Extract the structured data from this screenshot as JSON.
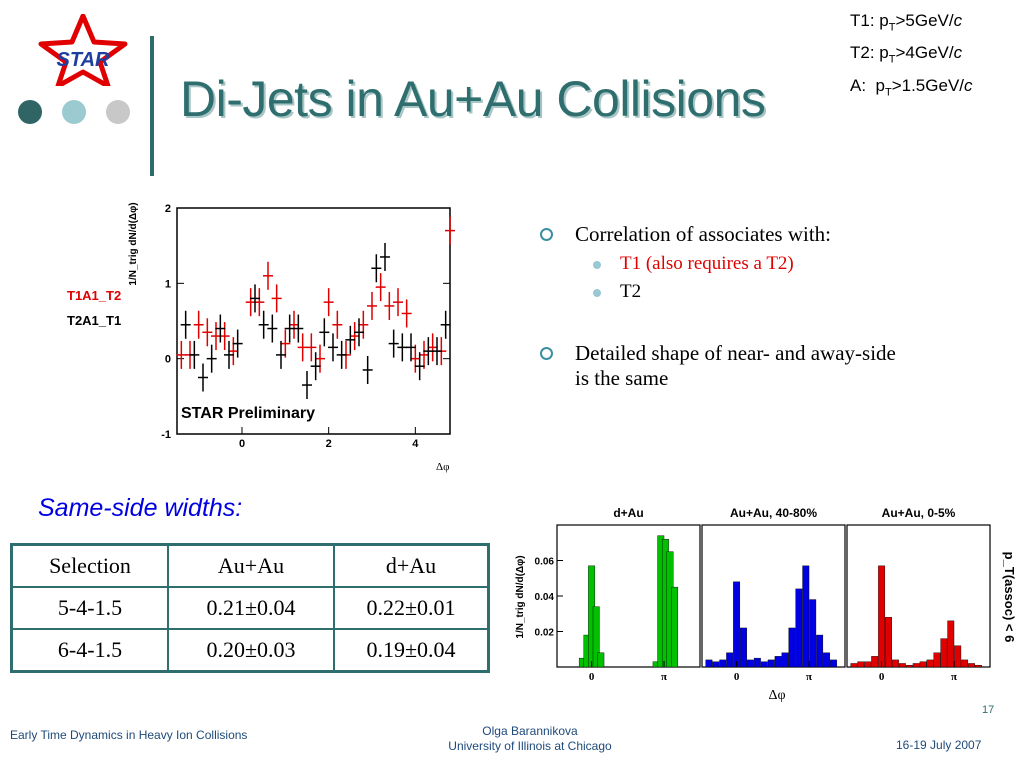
{
  "logo": {
    "text": "STAR"
  },
  "title": "Di-Jets in Au+Au Collisions",
  "cuts": [
    {
      "name": "T1",
      "prefix": "T1: p",
      "sub": "T",
      "value": ">5GeV/",
      "unit": "c"
    },
    {
      "name": "T2",
      "prefix": "T2: p",
      "sub": "T",
      "value": ">4GeV/",
      "unit": "c"
    },
    {
      "name": "A",
      "prefix": "A:  p",
      "sub": "T",
      "value": ">1.5GeV/",
      "unit": "c"
    }
  ],
  "legend": {
    "t1a1": "T1A1_T2",
    "t2a1": "T2A1_T1"
  },
  "bullets": {
    "main1": "Correlation of associates with:",
    "sub1": "T1 (also requires a T2)",
    "sub2": "T2",
    "main2": "Detailed shape of near- and away-side is the same"
  },
  "same_side": "Same-side widths:",
  "table": {
    "headers": [
      "Selection",
      "Au+Au",
      "d+Au"
    ],
    "rows": [
      [
        "5-4-1.5",
        "0.21±0.04",
        "0.22±0.01"
      ],
      [
        "6-4-1.5",
        "0.20±0.03",
        "0.19±0.04"
      ]
    ]
  },
  "footer": {
    "left": "Early Time Dynamics in Heavy Ion Collisions",
    "author": "Olga Barannikova",
    "affiliation": "University of Illinois at Chicago",
    "date": "16-19 July 2007",
    "page": "17"
  },
  "colors": {
    "accent": "#2f6e6e",
    "red": "#e00000",
    "green": "#00c000",
    "blue": "#0000e0"
  },
  "chart_data": [
    {
      "type": "scatter",
      "title": "",
      "annotation": "STAR Preliminary",
      "xlabel": "Δφ",
      "ylabel": "1/N_trig dN/d(Δφ)",
      "xlim": [
        -1.5,
        4.8
      ],
      "ylim": [
        -1,
        2
      ],
      "xticks": [
        0,
        2,
        4
      ],
      "yticks": [
        -1,
        0,
        1,
        2
      ],
      "series": [
        {
          "name": "T1A1_T2",
          "color": "#e00000",
          "x": [
            -1.4,
            -1.2,
            -1.0,
            -0.8,
            -0.6,
            -0.4,
            -0.2,
            0.2,
            0.4,
            0.6,
            0.8,
            1.0,
            1.2,
            1.4,
            1.6,
            1.8,
            2.0,
            2.2,
            2.4,
            2.6,
            2.8,
            3.0,
            3.2,
            3.4,
            3.6,
            3.8,
            4.0,
            4.2,
            4.4,
            4.6,
            4.8
          ],
          "y": [
            0.05,
            0.05,
            0.45,
            0.35,
            0.3,
            0.3,
            0.1,
            0.75,
            0.75,
            1.1,
            0.8,
            0.2,
            0.45,
            0.15,
            0.15,
            0.0,
            0.75,
            0.45,
            0.05,
            0.3,
            0.45,
            0.7,
            0.95,
            0.7,
            0.75,
            0.6,
            0.0,
            0.05,
            0.15,
            0.1,
            1.7
          ]
        },
        {
          "name": "T2A1_T1",
          "color": "#000000",
          "x": [
            -1.3,
            -1.1,
            -0.9,
            -0.7,
            -0.5,
            -0.3,
            -0.1,
            0.3,
            0.5,
            0.7,
            0.9,
            1.1,
            1.3,
            1.5,
            1.7,
            1.9,
            2.1,
            2.3,
            2.5,
            2.7,
            2.9,
            3.1,
            3.3,
            3.5,
            3.7,
            3.9,
            4.1,
            4.3,
            4.5,
            4.7
          ],
          "y": [
            0.45,
            0.05,
            -0.25,
            0.0,
            0.4,
            0.05,
            0.2,
            0.8,
            0.45,
            0.4,
            0.05,
            0.4,
            0.4,
            -0.35,
            -0.1,
            0.35,
            0.15,
            0.05,
            0.25,
            0.35,
            -0.15,
            1.2,
            1.35,
            0.2,
            0.15,
            0.15,
            -0.1,
            0.1,
            0.1,
            0.45
          ]
        }
      ]
    },
    {
      "type": "bar",
      "xlabel": "Δφ",
      "ylabel": "1/N_trig dN/d(Δφ)",
      "right_label": "p_T(assoc) < 6",
      "ylim": [
        0,
        0.08
      ],
      "yticks": [
        0.02,
        0.04,
        0.06
      ],
      "xticks": [
        "0",
        "π"
      ],
      "panels": [
        {
          "name": "d+Au",
          "color": "#00c000",
          "x": [
            -0.4,
            -0.2,
            0,
            0.2,
            0.4,
            2.8,
            3.0,
            3.2,
            3.4,
            3.6
          ],
          "values": [
            0.005,
            0.018,
            0.057,
            0.034,
            0.008,
            0.003,
            0.074,
            0.072,
            0.065,
            0.045
          ]
        },
        {
          "name": "Au+Au, 40-80%",
          "color": "#0000e0",
          "x": [
            -1.2,
            -0.9,
            -0.6,
            -0.3,
            0,
            0.3,
            0.6,
            0.9,
            1.2,
            1.5,
            1.8,
            2.1,
            2.4,
            2.7,
            3.0,
            3.3,
            3.6,
            3.9,
            4.2
          ],
          "values": [
            0.004,
            0.003,
            0.004,
            0.008,
            0.048,
            0.022,
            0.004,
            0.005,
            0.003,
            0.004,
            0.006,
            0.008,
            0.022,
            0.044,
            0.057,
            0.038,
            0.018,
            0.008,
            0.004
          ]
        },
        {
          "name": "Au+Au, 0-5%",
          "color": "#e00000",
          "x": [
            -1.2,
            -0.9,
            -0.6,
            -0.3,
            0,
            0.3,
            0.6,
            0.9,
            1.2,
            1.5,
            1.8,
            2.1,
            2.4,
            2.7,
            3.0,
            3.3,
            3.6,
            3.9,
            4.2
          ],
          "values": [
            0.002,
            0.003,
            0.003,
            0.006,
            0.057,
            0.028,
            0.004,
            0.002,
            0.001,
            0.002,
            0.003,
            0.004,
            0.008,
            0.016,
            0.026,
            0.012,
            0.004,
            0.002,
            0.001
          ]
        }
      ]
    }
  ]
}
